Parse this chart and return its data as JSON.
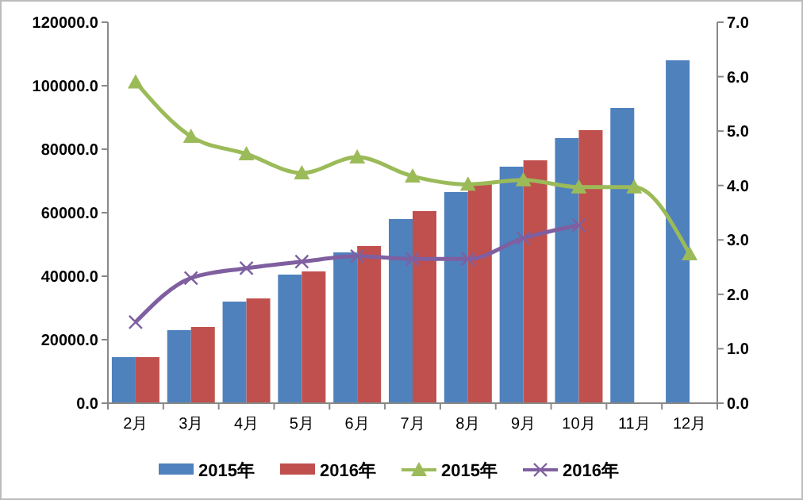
{
  "chart_data": {
    "type": "bar",
    "categories": [
      "2月",
      "3月",
      "4月",
      "5月",
      "6月",
      "7月",
      "8月",
      "9月",
      "10月",
      "11月",
      "12月"
    ],
    "series": [
      {
        "name": "2015年",
        "color": "#4f81bd",
        "values": [
          14500,
          23000,
          32000,
          40500,
          47500,
          58000,
          66500,
          74500,
          83500,
          93000,
          108000
        ]
      },
      {
        "name": "2016年",
        "color": "#c0504d",
        "values": [
          14500,
          24000,
          33000,
          41500,
          49500,
          60500,
          69500,
          76500,
          86000,
          null,
          null
        ]
      },
      {
        "name": "2015年",
        "type": "line",
        "axis": "y2",
        "marker": "triangle",
        "color": "#9bbb59",
        "values": [
          5.9,
          4.9,
          4.58,
          4.23,
          4.52,
          4.17,
          4.02,
          4.1,
          3.97,
          3.97,
          2.74
        ]
      },
      {
        "name": "2016年",
        "type": "line",
        "axis": "y2",
        "marker": "cross",
        "color": "#7f5fa0",
        "values": [
          1.49,
          2.3,
          2.48,
          2.6,
          2.7,
          2.65,
          2.65,
          3.03,
          3.27,
          null,
          null
        ]
      }
    ],
    "ylim": [
      0,
      120000
    ],
    "yticks": [
      {
        "value": 0,
        "label": "0.0"
      },
      {
        "value": 20000,
        "label": "20000.0"
      },
      {
        "value": 40000,
        "label": "40000.0"
      },
      {
        "value": 60000,
        "label": "60000.0"
      },
      {
        "value": 80000,
        "label": "80000.0"
      },
      {
        "value": 100000,
        "label": "100000.0"
      },
      {
        "value": 120000,
        "label": "120000.0"
      }
    ],
    "y2lim": [
      0,
      7
    ],
    "y2ticks": [
      {
        "value": 0,
        "label": "0.0"
      },
      {
        "value": 1,
        "label": "1.0"
      },
      {
        "value": 2,
        "label": "2.0"
      },
      {
        "value": 3,
        "label": "3.0"
      },
      {
        "value": 4,
        "label": "4.0"
      },
      {
        "value": 5,
        "label": "5.0"
      },
      {
        "value": 6,
        "label": "6.0"
      },
      {
        "value": 7,
        "label": "7.0"
      }
    ],
    "legend": "bottom",
    "grid": false
  }
}
